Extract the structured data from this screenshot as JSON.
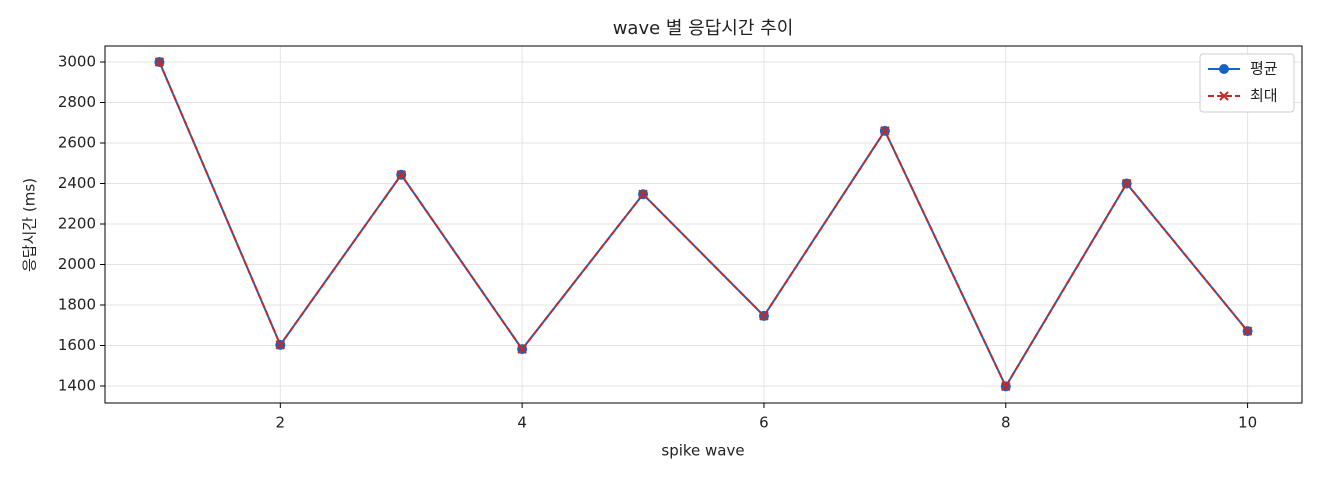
{
  "chart_data": {
    "type": "line",
    "title": "wave 별 응답시간 추이",
    "x_label": "spike wave",
    "y_label": "응답시간 (ms)",
    "x": [
      1,
      2,
      3,
      4,
      5,
      6,
      7,
      8,
      9,
      10
    ],
    "series": [
      {
        "name": "평균",
        "color": "#1565c0",
        "marker": "circle",
        "dash": false,
        "values": [
          3000,
          1603,
          2443,
          1582,
          2347,
          1746,
          2660,
          1398,
          2400,
          1671
        ]
      },
      {
        "name": "최대",
        "color": "#c62828",
        "marker": "x",
        "dash": true,
        "values": [
          3000,
          1603,
          2443,
          1582,
          2347,
          1746,
          2660,
          1398,
          2400,
          1671
        ]
      }
    ],
    "xlim": [
      0.55,
      10.45
    ],
    "xticks": [
      2,
      4,
      6,
      8,
      10
    ],
    "ylim": [
      1316,
      3079
    ],
    "yticks": [
      1400,
      1600,
      1800,
      2000,
      2200,
      2400,
      2600,
      2800,
      3000
    ],
    "grid": true,
    "legend": "upper right"
  }
}
